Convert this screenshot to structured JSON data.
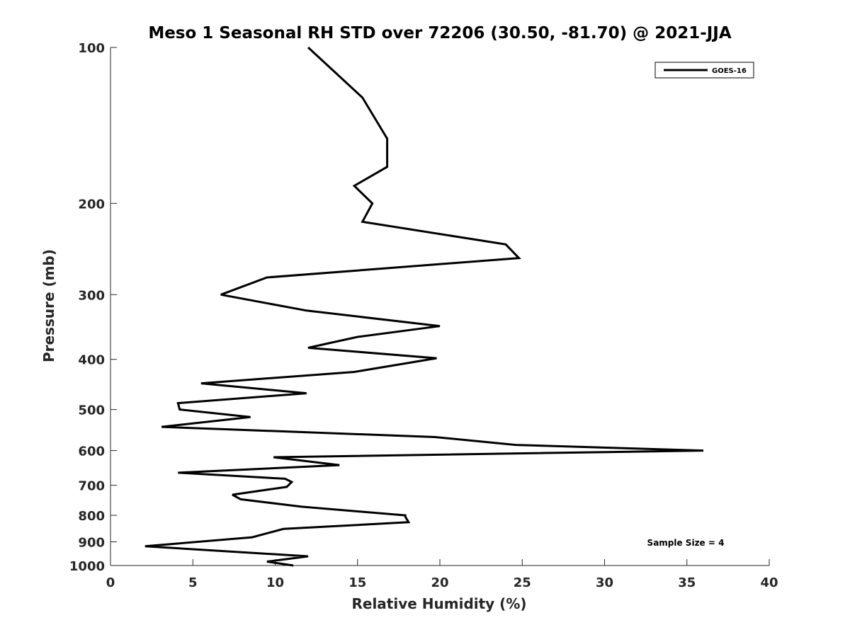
{
  "chart_data": {
    "type": "line",
    "title": "Meso 1 Seasonal RH STD over 72206 (30.50, -81.70) @ 2021-JJA",
    "xlabel": "Relative Humidity (%)",
    "ylabel": "Pressure (mb)",
    "xlim": [
      0,
      40
    ],
    "ylim": [
      100,
      1000
    ],
    "y_scale": "log",
    "y_reversed": true,
    "x_ticks": [
      "0",
      "5",
      "10",
      "15",
      "20",
      "25",
      "30",
      "35",
      "40"
    ],
    "y_ticks": [
      "100",
      "200",
      "300",
      "400",
      "500",
      "600",
      "700",
      "800",
      "900",
      "1000"
    ],
    "grid": false,
    "legend_position": "top-right",
    "annotation": "Sample Size = 4",
    "series": [
      {
        "name": "GOES-16",
        "color": "#000000",
        "x": [
          12.0,
          15.3,
          16.8,
          16.8,
          14.8,
          15.9,
          15.3,
          24.0,
          24.8,
          9.5,
          6.7,
          11.9,
          20.0,
          15.0,
          12.0,
          19.8,
          14.8,
          5.5,
          11.9,
          4.1,
          4.2,
          8.5,
          3.1,
          19.7,
          24.6,
          36.0,
          9.9,
          13.9,
          4.1,
          10.6,
          11.0,
          10.7,
          7.4,
          7.9,
          11.6,
          17.9,
          17.9,
          18.1,
          10.5,
          8.6,
          2.1,
          12.0,
          9.5,
          11.1
        ],
        "y": [
          100,
          125,
          150,
          170,
          185,
          200,
          217,
          240,
          255,
          278,
          300,
          322,
          345,
          362,
          380,
          398,
          423,
          445,
          465,
          486,
          500,
          517,
          540,
          565,
          585,
          600,
          618,
          640,
          662,
          680,
          690,
          705,
          730,
          745,
          770,
          800,
          805,
          825,
          850,
          882,
          918,
          960,
          983,
          1000
        ]
      }
    ]
  }
}
